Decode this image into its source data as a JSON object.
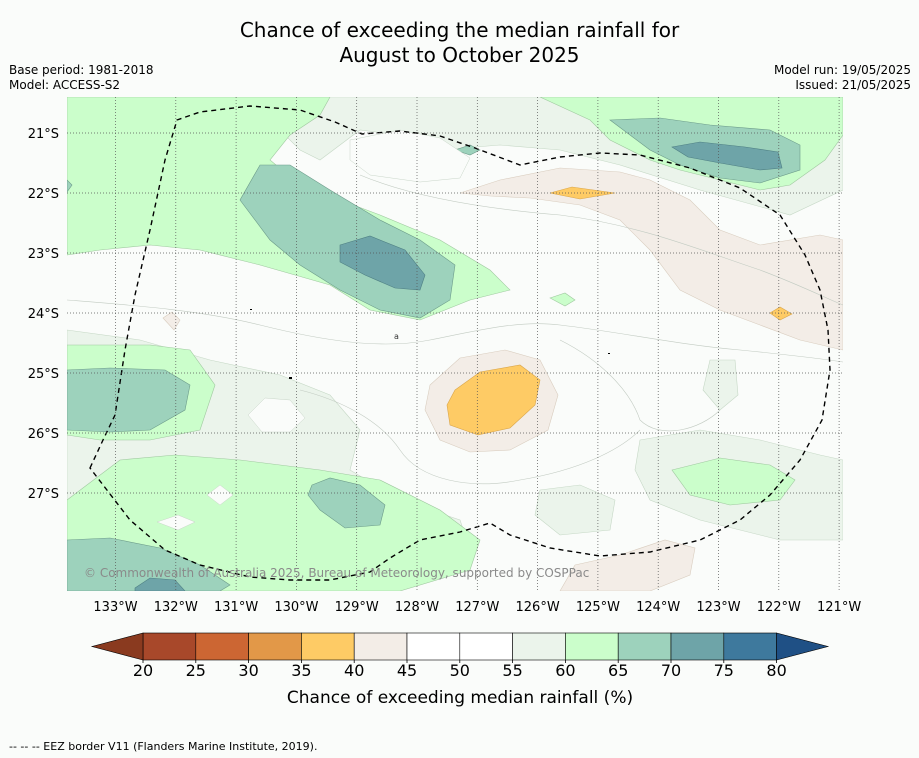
{
  "title_line1": "Chance of exceeding the median rainfall for",
  "title_line2": "August to October 2025",
  "base_period": "Base period: 1981-2018",
  "model": "Model: ACCESS-S2",
  "model_run": "Model run: 19/05/2025",
  "issued": "Issued: 21/05/2025",
  "copyright": "© Commonwealth of Australia 2025, Bureau of Meteorology, supported by COSPPac",
  "footer": "--  --  -- EEZ border V11 (Flanders Marine Institute, 2019).",
  "lat_labels": [
    "21°S",
    "22°S",
    "23°S",
    "24°S",
    "25°S",
    "26°S",
    "27°S"
  ],
  "lon_labels": [
    "133°W",
    "132°W",
    "131°W",
    "130°W",
    "129°W",
    "128°W",
    "127°W",
    "126°W",
    "125°W",
    "124°W",
    "123°W",
    "122°W",
    "121°W"
  ],
  "colorbar": {
    "label": "Chance of exceeding median rainfall (%)",
    "ticks": [
      "20",
      "25",
      "30",
      "35",
      "40",
      "45",
      "50",
      "55",
      "60",
      "65",
      "70",
      "75",
      "80"
    ],
    "colors": [
      "#a8482a",
      "#cc6633",
      "#e29848",
      "#fecb65",
      "#f3ede7",
      "#ffffff",
      "#ffffff",
      "#ebf4eb",
      "#cbfecb",
      "#9dd2bc",
      "#6ea4a8",
      "#3e799d"
    ],
    "under_color": "#8a3a1f",
    "over_color": "#1f5085"
  },
  "colors": {
    "green_light": "#cbfecb",
    "green_pale": "#ebf4eb",
    "teal": "#9dd2bc",
    "teal_dark": "#6ea4a8",
    "beige": "#f3ede7",
    "yellow": "#fecb65"
  }
}
